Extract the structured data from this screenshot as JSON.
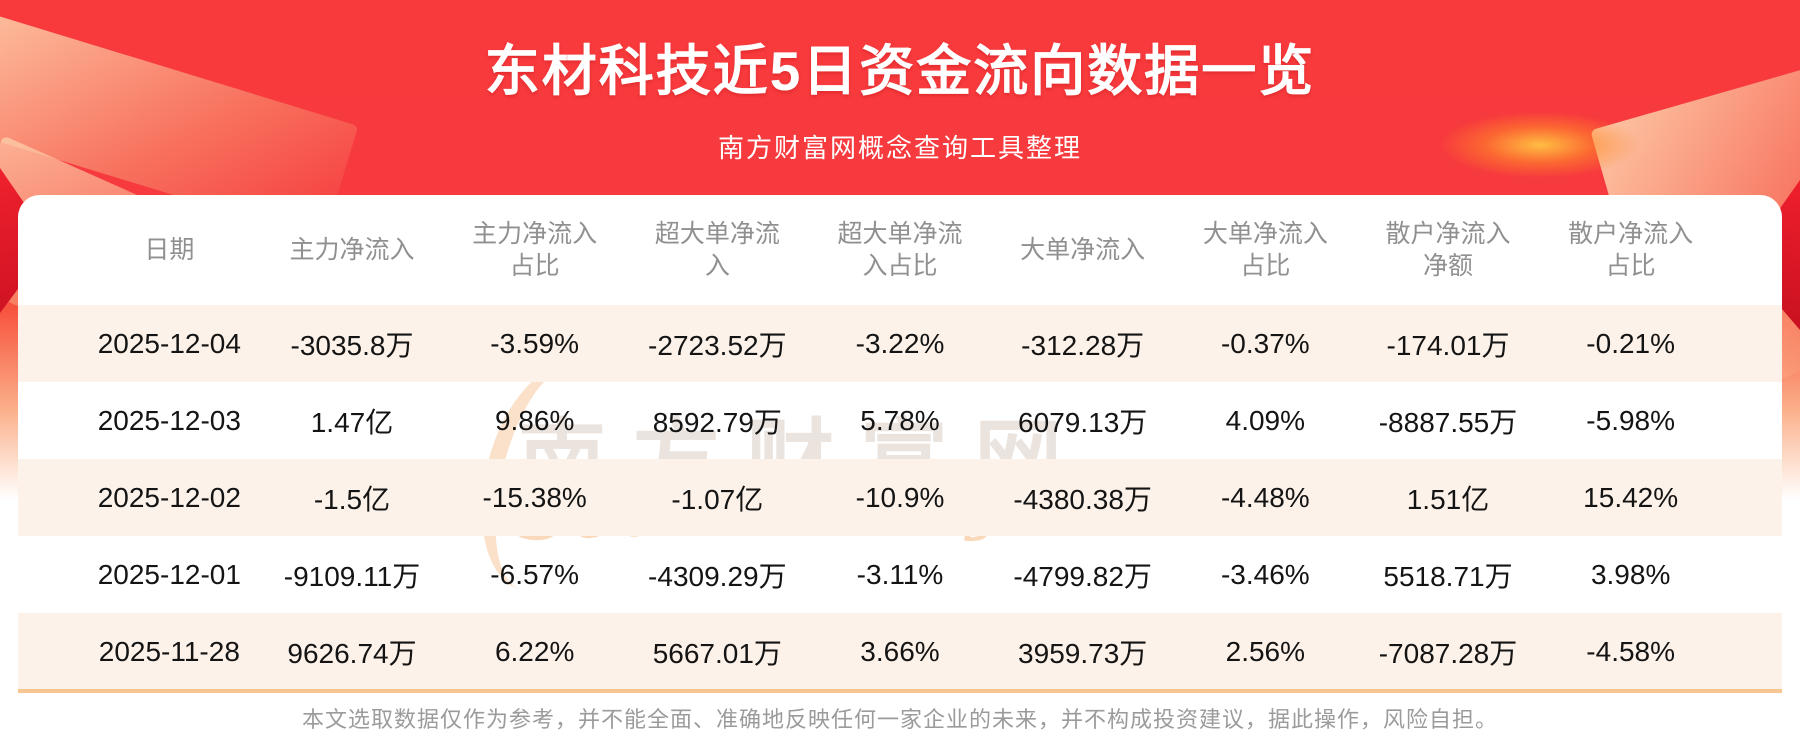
{
  "page": {
    "title": "东材科技近5日资金流向数据一览",
    "subtitle": "南方财富网概念查询工具整理",
    "disclaimer": "本文选取数据仅作为参考，并不能全面、准确地反映任何一家企业的未来，并不构成投资建议，据此操作，风险自担。",
    "watermark_cn": "南方财富网",
    "watermark_en": "Southmoney.com"
  },
  "colors": {
    "hero_red": "#f93a3d",
    "row_alt_cream": "#fdf2e9",
    "table_bottom_border": "#f7c690",
    "header_text": "#909090",
    "cell_text": "#141414",
    "disclaimer_text": "#9b9b9b"
  },
  "chart_data": {
    "type": "table",
    "title": "东材科技近5日资金流向数据一览",
    "columns": [
      "日期",
      "主力净流入",
      "主力净流入占比",
      "超大单净流入",
      "超大单净流入占比",
      "大单净流入",
      "大单净流入占比",
      "散户净流入净额",
      "散户净流入占比"
    ],
    "rows": [
      [
        "2025-12-04",
        "-3035.8万",
        "-3.59%",
        "-2723.52万",
        "-3.22%",
        "-312.28万",
        "-0.37%",
        "-174.01万",
        "-0.21%"
      ],
      [
        "2025-12-03",
        "1.47亿",
        "9.86%",
        "8592.79万",
        "5.78%",
        "6079.13万",
        "4.09%",
        "-8887.55万",
        "-5.98%"
      ],
      [
        "2025-12-02",
        "-1.5亿",
        "-15.38%",
        "-1.07亿",
        "-10.9%",
        "-4380.38万",
        "-4.48%",
        "1.51亿",
        "15.42%"
      ],
      [
        "2025-12-01",
        "-9109.11万",
        "-6.57%",
        "-4309.29万",
        "-3.11%",
        "-4799.82万",
        "-3.46%",
        "5518.71万",
        "3.98%"
      ],
      [
        "2025-11-28",
        "9626.74万",
        "6.22%",
        "5667.01万",
        "3.66%",
        "3959.73万",
        "2.56%",
        "-7087.28万",
        "-4.58%"
      ]
    ]
  }
}
